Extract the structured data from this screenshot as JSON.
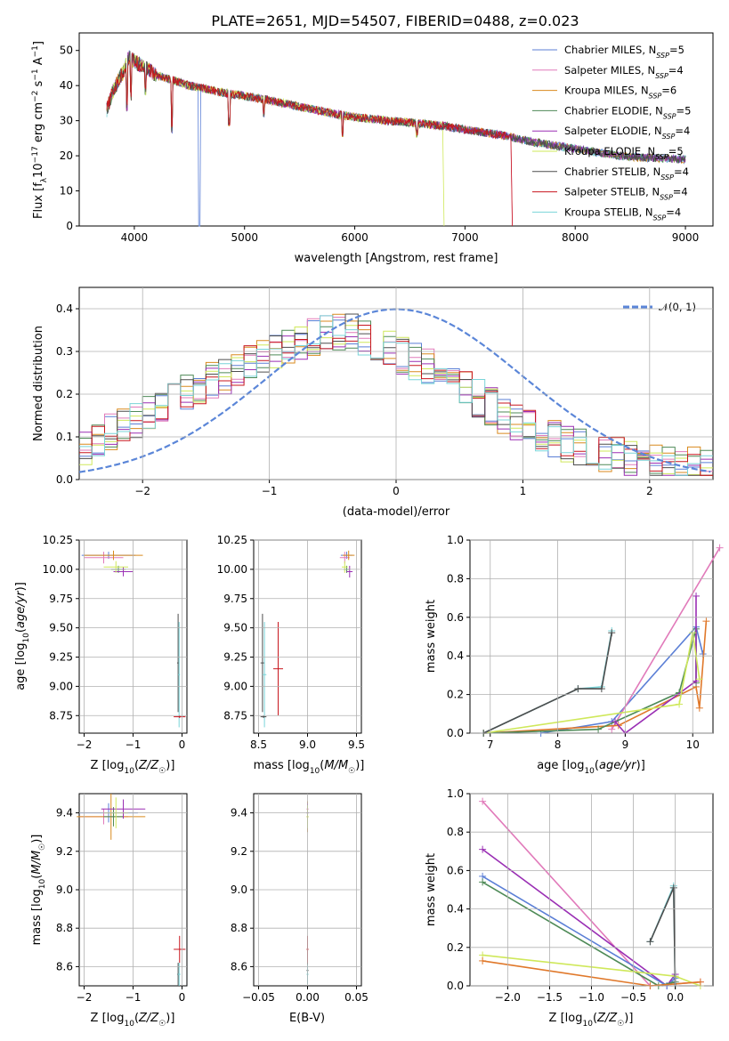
{
  "title": "PLATE=2651, MJD=54507, FIBERID=0488, z=0.023",
  "colors": {
    "Chabrier MILES": "#5b7fd6",
    "Salpeter MILES": "#e17aba",
    "Kroupa MILES": "#d98a1e",
    "Chabrier ELODIE": "#4e8a57",
    "Salpeter ELODIE": "#9a2fb4",
    "Kroupa ELODIE": "#cfe85a",
    "Chabrier STELIB": "#4d4d4d",
    "Salpeter STELIB": "#c8161e",
    "Kroupa STELIB": "#79d4d8",
    "orange_fit": "#e0782a",
    "normal": "#5b86d8"
  },
  "chart_data": [
    {
      "type": "line",
      "xlabel": "wavelength [Angstrom, rest frame]",
      "ylabel": "Flux [f_λ 10^-17 erg cm^-2 s^-1 A^-1]",
      "xlim": [
        3500,
        9250
      ],
      "ylim": [
        0,
        55
      ],
      "xticks": [
        "4000",
        "5000",
        "6000",
        "7000",
        "8000",
        "9000"
      ],
      "yticks": [
        "0",
        "10",
        "20",
        "30",
        "40",
        "50"
      ],
      "legend_position": "top-right",
      "legend": [
        {
          "name": "Chabrier MILES",
          "nssp": "5"
        },
        {
          "name": "Salpeter MILES",
          "nssp": "4"
        },
        {
          "name": "Kroupa MILES",
          "nssp": "6"
        },
        {
          "name": "Chabrier ELODIE",
          "nssp": "5"
        },
        {
          "name": "Salpeter ELODIE",
          "nssp": "4"
        },
        {
          "name": "Kroupa ELODIE",
          "nssp": "5"
        },
        {
          "name": "Chabrier STELIB",
          "nssp": "4"
        },
        {
          "name": "Salpeter STELIB",
          "nssp": "4"
        },
        {
          "name": "Kroupa STELIB",
          "nssp": "4"
        }
      ],
      "continuum": {
        "x": [
          3750,
          3800,
          3850,
          3900,
          3950,
          4000,
          4100,
          4200,
          4300,
          4500,
          4800,
          5000,
          5200,
          5500,
          5800,
          6000,
          6300,
          6500,
          6800,
          7000,
          7200,
          7400,
          7600,
          7800,
          8000,
          8200,
          8400,
          8600,
          9000
        ],
        "y": [
          33,
          38,
          41,
          44,
          48,
          47,
          45,
          43,
          42,
          40,
          38,
          37,
          36,
          34,
          32,
          31,
          30,
          29.5,
          28.5,
          27.5,
          26.5,
          25.5,
          24,
          23,
          22,
          21,
          20,
          19.5,
          19
        ]
      }
    },
    {
      "type": "line",
      "xlabel": "(data-model)/error",
      "ylabel": "Normed distribution",
      "xlim": [
        -2.5,
        2.5
      ],
      "ylim": [
        0,
        0.45
      ],
      "xticks": [
        "−2",
        "−1",
        "0",
        "1",
        "2"
      ],
      "yticks": [
        "0.0",
        "0.1",
        "0.2",
        "0.3",
        "0.4"
      ],
      "legend_label": "𝒩(0, 1)",
      "gaussian": {
        "mean": 0,
        "sigma": 1
      },
      "histogram_shape": {
        "x": [
          -2.5,
          -2.2,
          -1.9,
          -1.6,
          -1.3,
          -1.0,
          -0.7,
          -0.4,
          -0.1,
          0.2,
          0.5,
          0.8,
          1.1,
          1.4,
          1.7,
          2.0,
          2.3,
          2.5
        ],
        "y": [
          0.07,
          0.12,
          0.16,
          0.21,
          0.25,
          0.3,
          0.33,
          0.35,
          0.31,
          0.27,
          0.22,
          0.16,
          0.11,
          0.08,
          0.06,
          0.04,
          0.035,
          0.03
        ]
      }
    },
    {
      "type": "scatter",
      "xlabel": "Z [log10(Z/Z☉)]",
      "ylabel": "age [log10(age/yr)]",
      "xlim": [
        -2.1,
        0.1
      ],
      "ylim": [
        8.6,
        10.25
      ],
      "xticks": [
        "−2",
        "−1",
        "0"
      ],
      "yticks": [
        "8.75",
        "9.00",
        "9.25",
        "9.50",
        "9.75",
        "10.00",
        "10.25"
      ]
    },
    {
      "type": "scatter",
      "xlabel": "mass [log10(M/M☉)]",
      "ylabel": "",
      "xlim": [
        8.45,
        9.55
      ],
      "ylim": [
        8.6,
        10.25
      ],
      "xticks": [
        "8.5",
        "9.0",
        "9.5"
      ],
      "yticks": [
        "8.75",
        "9.00",
        "9.25",
        "9.50",
        "9.75",
        "10.00",
        "10.25"
      ]
    },
    {
      "type": "line",
      "xlabel": "age [log10(age/yr)]",
      "ylabel": "mass weight",
      "xlim": [
        6.7,
        10.3
      ],
      "ylim": [
        0,
        1.0
      ],
      "xticks": [
        "7",
        "8",
        "9",
        "10"
      ],
      "yticks": [
        "0.0",
        "0.2",
        "0.4",
        "0.6",
        "0.8",
        "1.0"
      ],
      "series": [
        {
          "color": "#5b7fd6",
          "x": [
            7.75,
            8.8,
            10.05,
            10.15
          ],
          "y": [
            0.0,
            0.06,
            0.55,
            0.41
          ]
        },
        {
          "color": "#e17aba",
          "x": [
            8.8,
            10.4
          ],
          "y": [
            0.02,
            0.96
          ]
        },
        {
          "color": "#e0782a",
          "x": [
            6.9,
            8.9,
            10.05,
            10.1,
            10.2
          ],
          "y": [
            0.0,
            0.04,
            0.24,
            0.13,
            0.58
          ]
        },
        {
          "color": "#4e8a57",
          "x": [
            6.9,
            8.6,
            9.8,
            10.05,
            10.05
          ],
          "y": [
            0.0,
            0.02,
            0.21,
            0.54,
            0.26
          ]
        },
        {
          "color": "#9a2fb4",
          "x": [
            8.85,
            9.0,
            10.05,
            10.05
          ],
          "y": [
            0.06,
            0.0,
            0.27,
            0.71
          ]
        },
        {
          "color": "#cfe85a",
          "x": [
            6.9,
            9.8,
            10.0,
            10.1
          ],
          "y": [
            0.0,
            0.15,
            0.52,
            0.28
          ]
        },
        {
          "color": "#79d4d8",
          "x": [
            6.9,
            8.3,
            8.65,
            8.8
          ],
          "y": [
            0.0,
            0.23,
            0.24,
            0.53
          ]
        },
        {
          "color": "#4d4d4d",
          "x": [
            6.9,
            8.3,
            8.65,
            8.8
          ],
          "y": [
            0.0,
            0.23,
            0.23,
            0.52
          ]
        }
      ]
    },
    {
      "type": "scatter",
      "xlabel": "Z [log10(Z/Z☉)]",
      "ylabel": "mass [log10(M/M☉)]",
      "xlim": [
        -2.1,
        0.1
      ],
      "ylim": [
        8.5,
        9.5
      ],
      "xticks": [
        "−2",
        "−1",
        "0"
      ],
      "yticks": [
        "8.6",
        "8.8",
        "9.0",
        "9.2",
        "9.4"
      ]
    },
    {
      "type": "scatter",
      "xlabel": "E(B-V)",
      "ylabel": "",
      "xlim": [
        -0.055,
        0.055
      ],
      "ylim": [
        8.5,
        9.5
      ],
      "xticks": [
        "−0.05",
        "0.00",
        "0.05"
      ],
      "yticks": [
        "8.6",
        "8.8",
        "9.0",
        "9.2",
        "9.4"
      ]
    },
    {
      "type": "line",
      "xlabel": "Z [log10(Z/Z☉)]",
      "ylabel": "mass weight",
      "xlim": [
        -2.45,
        0.45
      ],
      "ylim": [
        0,
        1.0
      ],
      "xticks": [
        "−2.0",
        "−1.5",
        "−1.0",
        "−0.5",
        "0.0"
      ],
      "yticks": [
        "0.0",
        "0.2",
        "0.4",
        "0.6",
        "0.8",
        "1.0"
      ],
      "series": [
        {
          "color": "#e17aba",
          "x": [
            -2.3,
            -0.3,
            0.3
          ],
          "y": [
            0.96,
            0.0,
            0.02
          ]
        },
        {
          "color": "#9a2fb4",
          "x": [
            -2.3,
            -0.1,
            0.0
          ],
          "y": [
            0.71,
            0.0,
            0.06
          ]
        },
        {
          "color": "#5b7fd6",
          "x": [
            -2.3,
            -0.1,
            0.0
          ],
          "y": [
            0.57,
            0.0,
            0.04
          ]
        },
        {
          "color": "#4e8a57",
          "x": [
            -2.3,
            -0.2,
            0.0
          ],
          "y": [
            0.54,
            0.0,
            0.02
          ]
        },
        {
          "color": "#cfe85a",
          "x": [
            -2.3,
            0.0,
            0.3
          ],
          "y": [
            0.16,
            0.05,
            0.0
          ]
        },
        {
          "color": "#e0782a",
          "x": [
            -2.3,
            -0.3,
            0.3
          ],
          "y": [
            0.13,
            0.0,
            0.02
          ]
        },
        {
          "color": "#79d4d8",
          "x": [
            -0.3,
            -0.02,
            0.0
          ],
          "y": [
            0.23,
            0.52,
            0.0
          ]
        },
        {
          "color": "#4d4d4d",
          "x": [
            -0.3,
            -0.02,
            0.0
          ],
          "y": [
            0.23,
            0.51,
            0.0
          ]
        }
      ]
    }
  ]
}
